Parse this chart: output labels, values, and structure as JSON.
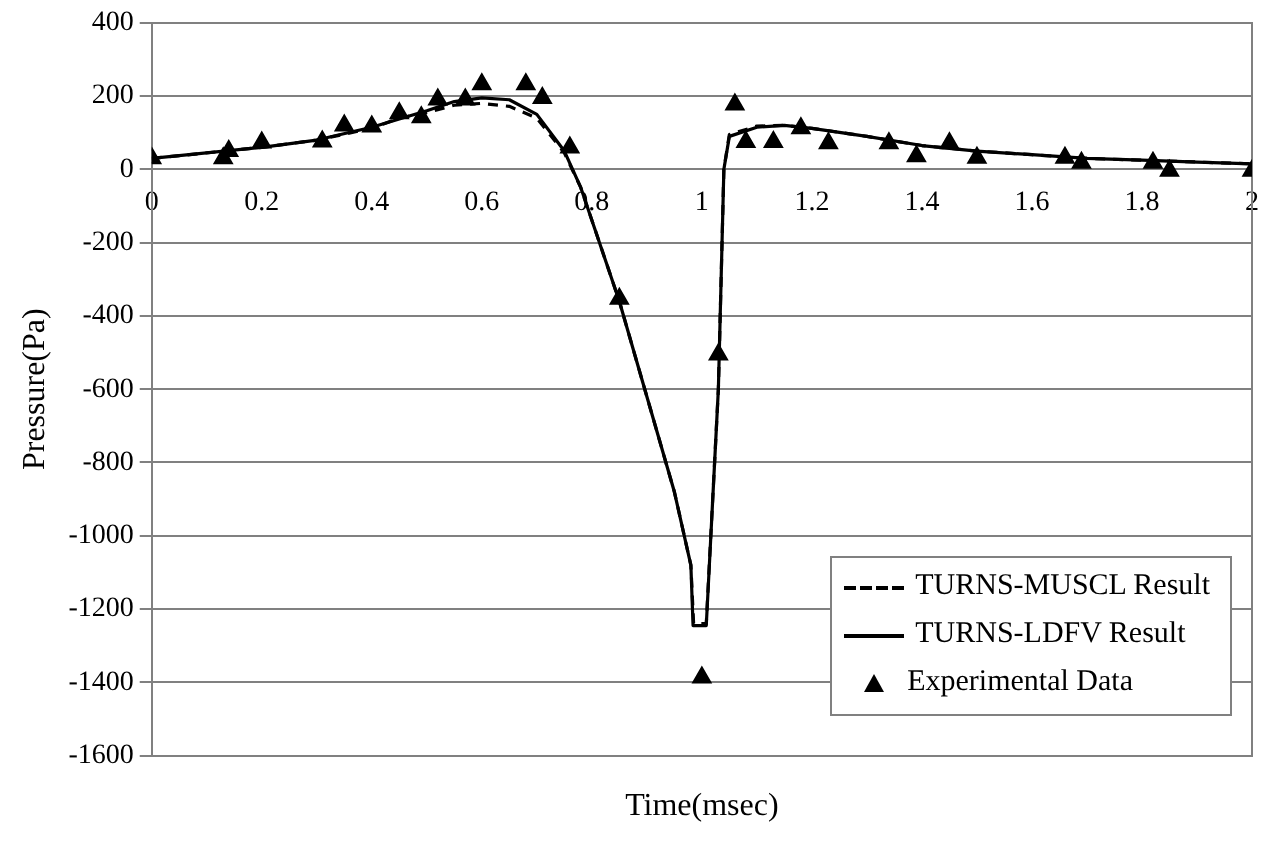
{
  "chart_data": {
    "type": "line",
    "xlabel": "Time(msec)",
    "ylabel": "Pressure(Pa)",
    "xlim": [
      0,
      2
    ],
    "xticks": [
      0,
      0.2,
      0.4,
      0.6,
      0.8,
      1,
      1.2,
      1.4,
      1.6,
      1.8,
      2
    ],
    "ylim": [
      -1600,
      400
    ],
    "yticks": [
      400,
      200,
      0,
      -200,
      -400,
      -600,
      -800,
      -1000,
      -1200,
      -1400,
      -1600
    ],
    "grid": "y",
    "legend": "bottom right",
    "series": [
      {
        "name": "TURNS-MUSCL Result",
        "type": "line",
        "line_style": "dashed",
        "marker": "none",
        "color": "#000000",
        "x": [
          0,
          0.2,
          0.3,
          0.4,
          0.45,
          0.5,
          0.55,
          0.6,
          0.65,
          0.7,
          0.75,
          0.78,
          0.85,
          0.9,
          0.95,
          0.98,
          0.985,
          1.008,
          1.03,
          1.04,
          1.05,
          1.1,
          1.15,
          1.2,
          1.3,
          1.4,
          1.5,
          1.6,
          1.7,
          1.8,
          1.9,
          2
        ],
        "values": [
          30,
          60,
          80,
          112,
          140,
          155,
          175,
          180,
          172,
          140,
          45,
          -50,
          -360,
          -620,
          -880,
          -1080,
          -1240,
          -1240,
          -600,
          0,
          95,
          118,
          120,
          112,
          90,
          65,
          50,
          40,
          30,
          25,
          20,
          15
        ]
      },
      {
        "name": "TURNS-LDFV Result",
        "type": "line",
        "line_style": "solid",
        "marker": "none",
        "color": "#000000",
        "x": [
          0,
          0.2,
          0.3,
          0.4,
          0.5,
          0.55,
          0.6,
          0.65,
          0.7,
          0.75,
          0.78,
          0.85,
          0.9,
          0.95,
          0.98,
          0.984,
          1.008,
          1.03,
          1.04,
          1.05,
          1.1,
          1.15,
          1.2,
          1.3,
          1.4,
          1.5,
          1.6,
          1.7,
          1.8,
          1.9,
          2
        ],
        "values": [
          30,
          60,
          80,
          115,
          160,
          185,
          195,
          190,
          150,
          50,
          -50,
          -360,
          -620,
          -880,
          -1080,
          -1245,
          -1245,
          -600,
          0,
          90,
          115,
          120,
          112,
          90,
          65,
          50,
          40,
          30,
          25,
          20,
          15
        ]
      },
      {
        "name": "Experimental Data",
        "type": "scatter",
        "marker": "triangle",
        "color": "#000000",
        "x": [
          0,
          0.13,
          0.14,
          0.2,
          0.31,
          0.35,
          0.4,
          0.45,
          0.49,
          0.52,
          0.57,
          0.6,
          0.68,
          0.71,
          0.76,
          0.85,
          1.0,
          1.03,
          1.06,
          1.08,
          1.13,
          1.18,
          1.23,
          1.34,
          1.39,
          1.45,
          1.5,
          1.66,
          1.69,
          1.82,
          1.85,
          2
        ],
        "values": [
          30,
          30,
          50,
          73,
          76,
          120,
          117,
          153,
          142,
          191,
          191,
          232,
          232,
          195,
          60,
          -353,
          -1387,
          -505,
          177,
          75,
          75,
          112,
          71,
          71,
          36,
          71,
          32,
          32,
          18,
          18,
          -4,
          -4
        ]
      }
    ]
  }
}
